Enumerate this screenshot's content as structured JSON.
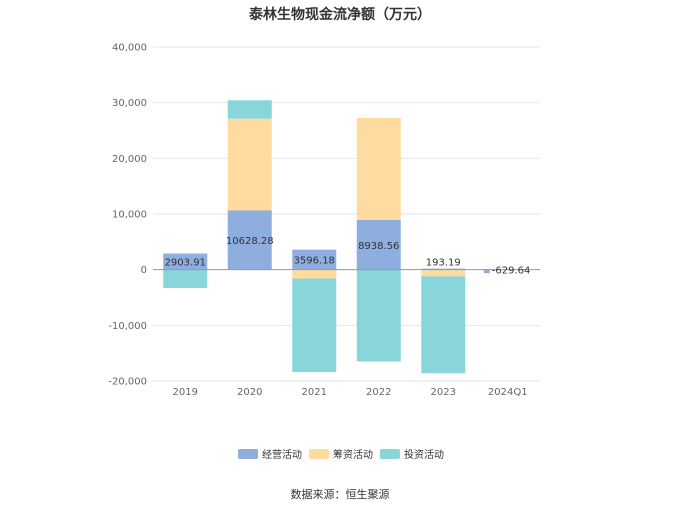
{
  "chart_data": {
    "type": "bar",
    "stacked": true,
    "title": "泰林生物现金流净额（万元）",
    "categories": [
      "2019",
      "2020",
      "2021",
      "2022",
      "2023",
      "2024Q1"
    ],
    "series": [
      {
        "name": "经营活动",
        "color": "#8eaedf",
        "values": [
          2903.91,
          10628.28,
          3596.18,
          8938.56,
          193.19,
          -629.64
        ]
      },
      {
        "name": "筹资活动",
        "color": "#ffdb9f",
        "values": [
          0,
          16500,
          -1600,
          18300,
          -1200,
          0
        ]
      },
      {
        "name": "投资活动",
        "color": "#88d5da",
        "values": [
          -3300,
          3300,
          -16800,
          -16500,
          -17400,
          0
        ]
      }
    ],
    "data_labels": [
      "2903.91",
      "10628.28",
      "3596.18",
      "8938.56",
      "193.19",
      "-629.64"
    ],
    "yticks": [
      "40,000",
      "30,000",
      "20,000",
      "10,000",
      "0",
      "-10,000",
      "-20,000"
    ],
    "ylim": [
      -20000,
      40000
    ],
    "legend_position": "bottom",
    "grid": true
  },
  "source_note": "数据来源：恒生聚源"
}
